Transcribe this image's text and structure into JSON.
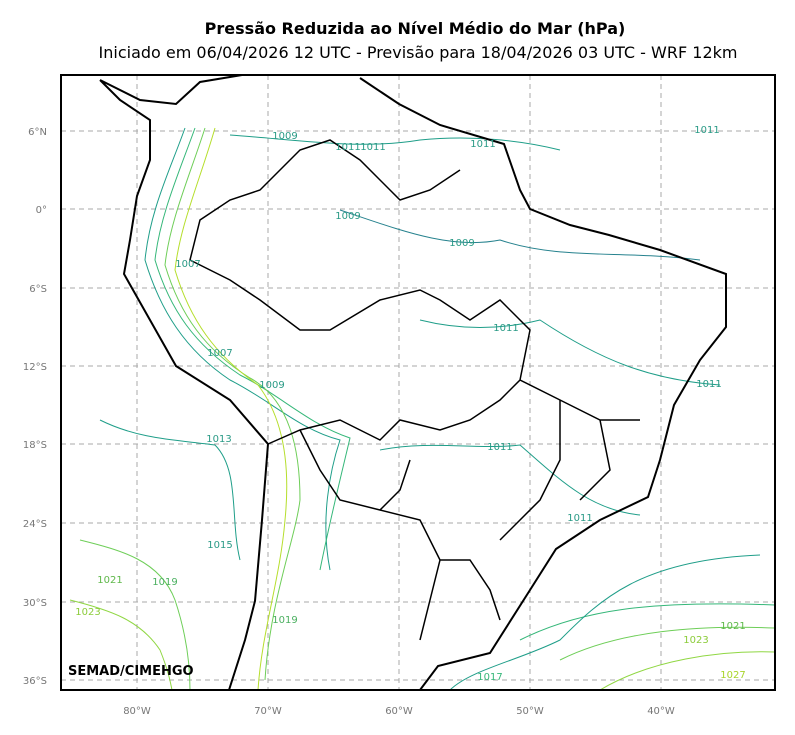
{
  "title": "Pressão Reduzida ao Nível Médio do Mar (hPa)",
  "subtitle": "Iniciado em 06/04/2026 12 UTC - Previsão para 18/04/2026 03 UTC - WRF 12km",
  "lat_labels": [
    "6°N",
    "0°",
    "6°S",
    "12°S",
    "18°S",
    "24°S",
    "30°S",
    "36°S"
  ],
  "lon_labels": [
    "80°W",
    "70°W",
    "60°W",
    "50°W",
    "40°W"
  ],
  "contour_labels": [
    "1009",
    "1011",
    "1011",
    "1011",
    "1011",
    "1009",
    "1009",
    "1007",
    "1011",
    "1007",
    "1011",
    "1009",
    "1013",
    "1011",
    "1011",
    "1015",
    "1021",
    "1019",
    "1023",
    "1019",
    "1021",
    "1023",
    "1027",
    "1017"
  ],
  "credit": "SEMAD/CIMEHGO"
}
